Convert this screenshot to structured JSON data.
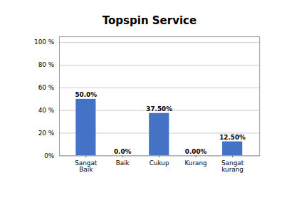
{
  "chart_data": {
    "type": "bar",
    "title": "Topspin Service",
    "categories": [
      "Sangat\nBaik",
      "Baik",
      "Cukup",
      "Kurang",
      "Sangat\nkurang"
    ],
    "values": [
      50.0,
      0.0,
      37.5,
      0.0,
      12.5
    ],
    "value_labels": [
      "50.0%",
      "0.0%",
      "37.50%",
      "0.00%",
      "12.50%"
    ],
    "data_labels": true,
    "color": "#4472C4",
    "ylim": [
      0,
      105
    ],
    "yticks": [
      {
        "value": 0,
        "label": "0%"
      },
      {
        "value": 20,
        "label": "20 %"
      },
      {
        "value": 40,
        "label": "40 %"
      },
      {
        "value": 60,
        "label": "60 %"
      },
      {
        "value": 80,
        "label": "80 %"
      },
      {
        "value": 100,
        "label": "100 %"
      }
    ],
    "grid": true
  }
}
